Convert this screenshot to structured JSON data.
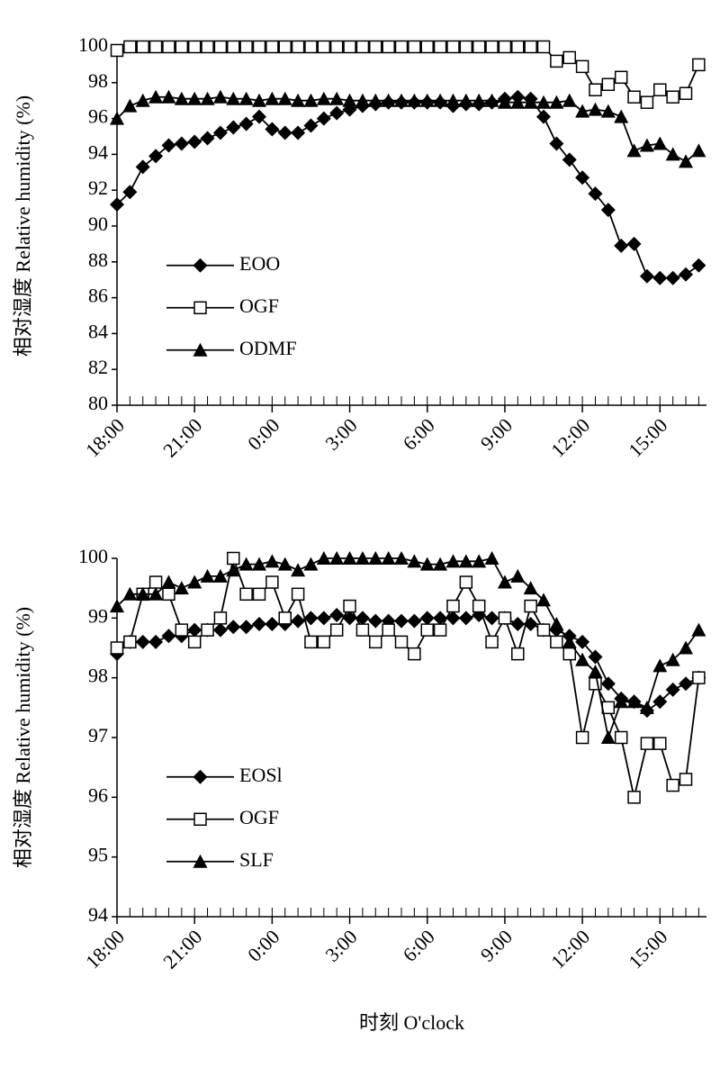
{
  "chart_data": [
    {
      "type": "line",
      "ylabel": "相对湿度 Relative humidity (%)",
      "x": [
        0,
        0.5,
        1,
        1.5,
        2,
        2.5,
        3,
        3.5,
        4,
        4.5,
        5,
        5.5,
        6,
        6.5,
        7,
        7.5,
        8,
        8.5,
        9,
        9.5,
        10,
        10.5,
        11,
        11.5,
        12,
        12.5,
        13,
        13.5,
        14,
        14.5,
        15,
        15.5,
        16,
        16.5,
        17,
        17.5,
        18,
        18.5,
        19,
        19.5,
        20,
        20.5,
        21,
        21.5,
        22,
        22.5
      ],
      "xlim": [
        0,
        22.8
      ],
      "xticks": [
        {
          "value": 0,
          "label": "18:00"
        },
        {
          "value": 3,
          "label": "21:00"
        },
        {
          "value": 6,
          "label": "0:00"
        },
        {
          "value": 9,
          "label": "3:00"
        },
        {
          "value": 12,
          "label": "6:00"
        },
        {
          "value": 15,
          "label": "9:00"
        },
        {
          "value": 18,
          "label": "12:00"
        },
        {
          "value": 21,
          "label": "15:00"
        }
      ],
      "ylim": [
        80,
        100
      ],
      "yticks": [
        80,
        82,
        84,
        86,
        88,
        90,
        92,
        94,
        96,
        98,
        100
      ],
      "legend": "lower left",
      "series": [
        {
          "name": "EOO",
          "color": "#000000",
          "marker": "diamond",
          "values": [
            91.2,
            91.9,
            93.3,
            93.9,
            94.5,
            94.6,
            94.7,
            94.9,
            95.2,
            95.5,
            95.7,
            96.1,
            95.4,
            95.2,
            95.2,
            95.6,
            96.0,
            96.3,
            96.5,
            96.7,
            96.8,
            96.9,
            96.9,
            96.9,
            96.9,
            96.9,
            96.7,
            96.8,
            96.8,
            96.9,
            97.1,
            97.2,
            97.1,
            96.1,
            94.6,
            93.7,
            92.7,
            91.8,
            90.9,
            88.9,
            89.0,
            87.2,
            87.1,
            87.1,
            87.3,
            87.8
          ]
        },
        {
          "name": "OGF",
          "color": "#000000",
          "marker": "square",
          "values": [
            99.8,
            100,
            100,
            100,
            100,
            100,
            100,
            100,
            100,
            100,
            100,
            100,
            100,
            100,
            100,
            100,
            100,
            100,
            100,
            100,
            100,
            100,
            100,
            100,
            100,
            100,
            100,
            100,
            100,
            100,
            100,
            100,
            100,
            100,
            99.2,
            99.4,
            98.9,
            97.6,
            97.9,
            98.3,
            97.2,
            96.9,
            97.6,
            97.2,
            97.4,
            99.0
          ]
        },
        {
          "name": "ODMF",
          "color": "#000000",
          "marker": "triangle",
          "values": [
            96.0,
            96.7,
            97.0,
            97.2,
            97.2,
            97.1,
            97.1,
            97.1,
            97.2,
            97.1,
            97.1,
            97.0,
            97.1,
            97.1,
            97.0,
            97.0,
            97.1,
            97.1,
            97.0,
            97.0,
            97.0,
            97.0,
            97.0,
            97.0,
            97.0,
            97.0,
            97.0,
            97.0,
            97.0,
            97.0,
            96.9,
            96.9,
            96.9,
            96.9,
            96.9,
            97.0,
            96.4,
            96.5,
            96.4,
            96.1,
            94.2,
            94.5,
            94.6,
            94.0,
            93.6,
            94.2
          ]
        }
      ]
    },
    {
      "type": "line",
      "ylabel": "相对湿度 Relative humidity (%)",
      "xlabel": "时刻 O'clock",
      "x": [
        0,
        0.5,
        1,
        1.5,
        2,
        2.5,
        3,
        3.5,
        4,
        4.5,
        5,
        5.5,
        6,
        6.5,
        7,
        7.5,
        8,
        8.5,
        9,
        9.5,
        10,
        10.5,
        11,
        11.5,
        12,
        12.5,
        13,
        13.5,
        14,
        14.5,
        15,
        15.5,
        16,
        16.5,
        17,
        17.5,
        18,
        18.5,
        19,
        19.5,
        20,
        20.5,
        21,
        21.5,
        22,
        22.5
      ],
      "xlim": [
        0,
        22.8
      ],
      "xticks": [
        {
          "value": 0,
          "label": "18:00"
        },
        {
          "value": 3,
          "label": "21:00"
        },
        {
          "value": 6,
          "label": "0:00"
        },
        {
          "value": 9,
          "label": "3:00"
        },
        {
          "value": 12,
          "label": "6:00"
        },
        {
          "value": 15,
          "label": "9:00"
        },
        {
          "value": 18,
          "label": "12:00"
        },
        {
          "value": 21,
          "label": "15:00"
        }
      ],
      "ylim": [
        94,
        100
      ],
      "yticks": [
        94,
        95,
        96,
        97,
        98,
        99,
        100
      ],
      "legend": "lower left",
      "series": [
        {
          "name": "EOSl",
          "color": "#000000",
          "marker": "diamond",
          "values": [
            98.4,
            98.6,
            98.6,
            98.6,
            98.7,
            98.7,
            98.8,
            98.8,
            98.8,
            98.85,
            98.85,
            98.9,
            98.9,
            98.9,
            98.95,
            99.0,
            99.0,
            99.05,
            99.0,
            99.0,
            98.95,
            98.95,
            98.95,
            98.95,
            99.0,
            99.0,
            99.0,
            99.0,
            99.05,
            99.0,
            99.0,
            98.9,
            98.9,
            98.8,
            98.8,
            98.7,
            98.6,
            98.35,
            97.9,
            97.65,
            97.6,
            97.45,
            97.6,
            97.8,
            97.9,
            98.0
          ]
        },
        {
          "name": "OGF",
          "color": "#000000",
          "marker": "square",
          "values": [
            98.5,
            98.6,
            99.4,
            99.6,
            99.4,
            98.8,
            98.6,
            98.8,
            99.0,
            100.0,
            99.4,
            99.4,
            99.6,
            99.0,
            99.4,
            98.6,
            98.6,
            98.8,
            99.2,
            98.8,
            98.6,
            98.8,
            98.6,
            98.4,
            98.8,
            98.8,
            99.2,
            99.6,
            99.2,
            98.6,
            99.0,
            98.4,
            99.2,
            98.8,
            98.6,
            98.4,
            97.0,
            97.9,
            97.5,
            97.0,
            96.0,
            96.9,
            96.9,
            96.2,
            96.3,
            98.0
          ]
        },
        {
          "name": "SLF",
          "color": "#000000",
          "marker": "triangle",
          "values": [
            99.2,
            99.4,
            99.4,
            99.4,
            99.6,
            99.5,
            99.6,
            99.7,
            99.7,
            99.8,
            99.9,
            99.9,
            99.95,
            99.9,
            99.8,
            99.9,
            100,
            100,
            100,
            100,
            100,
            100,
            100,
            99.95,
            99.9,
            99.9,
            99.95,
            99.95,
            99.95,
            100,
            99.6,
            99.7,
            99.5,
            99.3,
            98.9,
            98.6,
            98.3,
            98.1,
            97.0,
            97.6,
            97.6,
            97.5,
            98.2,
            98.3,
            98.5,
            98.8
          ]
        }
      ]
    }
  ]
}
